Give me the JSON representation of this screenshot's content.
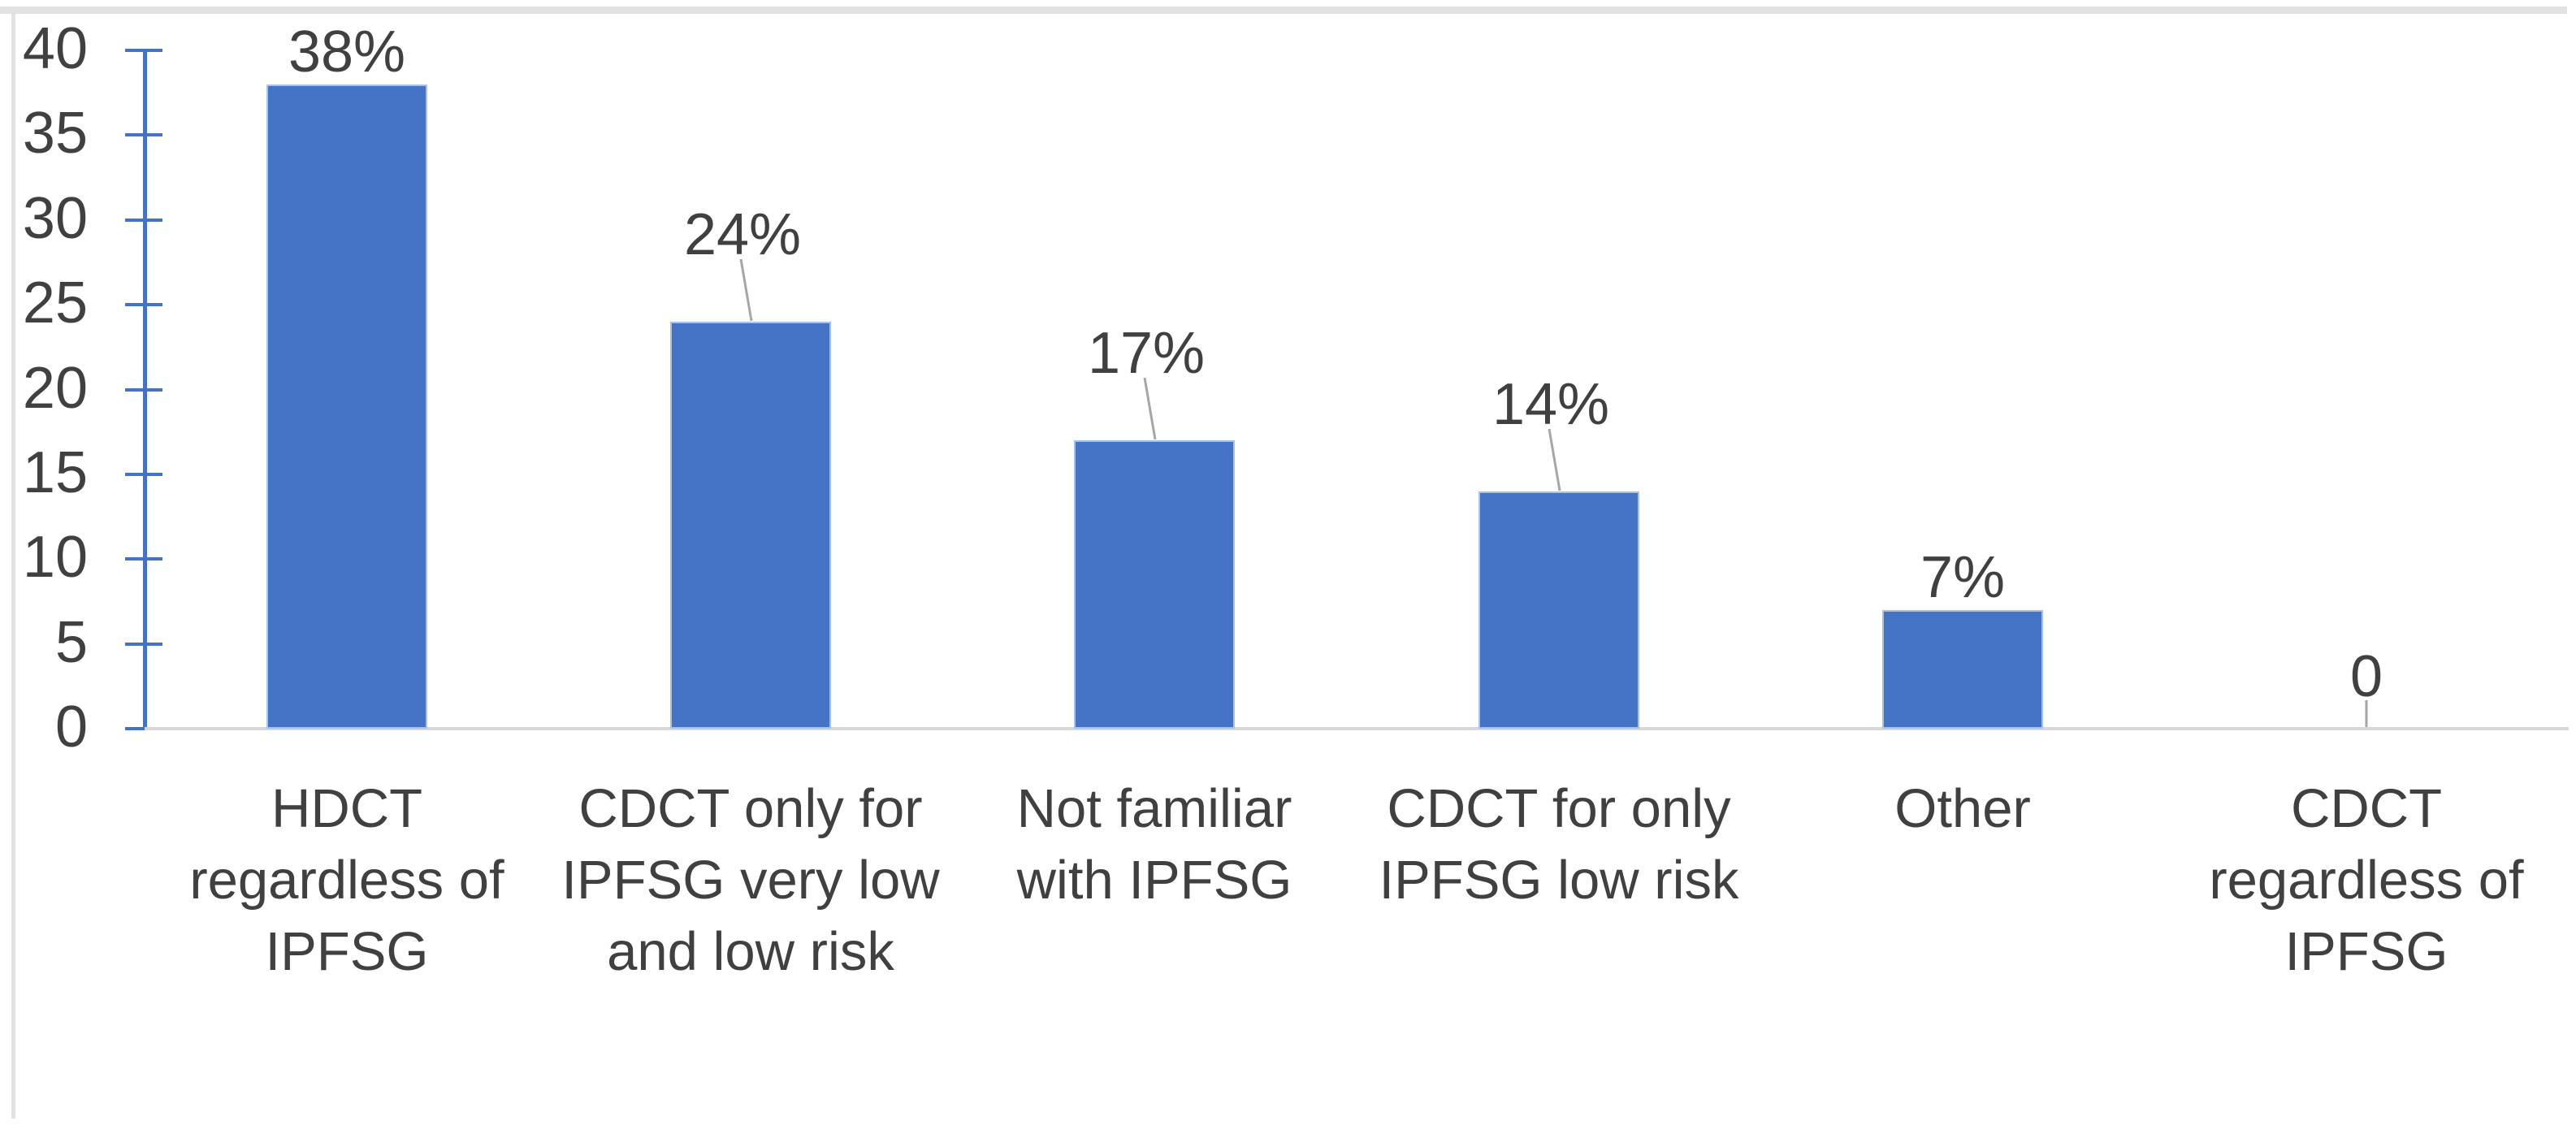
{
  "chart_data": {
    "type": "bar",
    "title": "",
    "xlabel": "",
    "ylabel": "",
    "categories": [
      "HDCT\nregardless of\nIPFSG",
      "CDCT only for\nIPFSG very low\nand low risk",
      "Not familiar\nwith IPFSG",
      "CDCT for only\nIPFSG low risk",
      "Other",
      "CDCT\nregardless of\nIPFSG"
    ],
    "values": [
      38,
      24,
      17,
      14,
      7,
      0
    ],
    "data_labels": [
      "38%",
      "24%",
      "17%",
      "14%",
      "7%",
      "0"
    ],
    "label_callout": [
      "none",
      "line",
      "line",
      "line",
      "none",
      "zero-line"
    ],
    "y_axis": {
      "min": 0,
      "max": 40,
      "tick_step": 5,
      "tick_labels": [
        "0",
        "5",
        "10",
        "15",
        "20",
        "25",
        "30",
        "35",
        "40"
      ]
    },
    "legend": "none",
    "grid": "off",
    "colors": {
      "bar": "#4472C4",
      "bar_edge": "#A9C0E8",
      "axis": "#4472C4",
      "baseline": "#D8D8D8",
      "text": "#404040",
      "leader_line": "#A6A6A6",
      "chart_border": "#E2E2E2"
    }
  }
}
